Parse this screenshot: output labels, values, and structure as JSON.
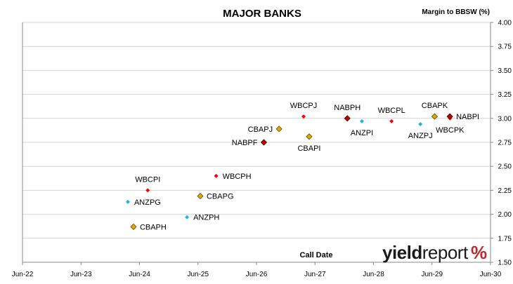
{
  "chart_data": {
    "type": "scatter",
    "title": "MAJOR BANKS",
    "ylabel": "Margin to BBSW (%)",
    "xlabel": "Call Date",
    "x_ticks": [
      "Jun-22",
      "Jun-23",
      "Jun-24",
      "Jun-25",
      "Jun-26",
      "Jun-27",
      "Jun-28",
      "Jun-29",
      "Jun-30"
    ],
    "ylim": [
      1.5,
      4.0
    ],
    "y_ticks": [
      "1.50",
      "1.75",
      "2.00",
      "2.25",
      "2.50",
      "2.75",
      "3.00",
      "3.25",
      "3.50",
      "3.75",
      "4.00"
    ],
    "grid": "horizontal",
    "colors": {
      "WBC": "#ff0000",
      "NAB": "#c00000",
      "ANZ": "#1fb4e6",
      "CBA": "#e5a800"
    },
    "points": [
      {
        "label": "ANZPG",
        "date": "2024-03-20",
        "y": 2.13,
        "bank": "ANZ",
        "shape": "diamond",
        "label_pos": "right"
      },
      {
        "label": "WBCPI",
        "date": "2024-07-22",
        "y": 2.25,
        "bank": "WBC",
        "shape": "diamond",
        "label_pos": "above"
      },
      {
        "label": "CBAPH",
        "date": "2024-04-24",
        "y": 1.87,
        "bank": "CBA",
        "shape": "diamond",
        "label_pos": "right"
      },
      {
        "label": "CBAPG",
        "date": "2025-06-15",
        "y": 2.19,
        "bank": "CBA",
        "shape": "diamond",
        "label_pos": "right"
      },
      {
        "label": "ANZPH",
        "date": "2025-03-24",
        "y": 1.97,
        "bank": "ANZ",
        "shape": "diamond",
        "label_pos": "right"
      },
      {
        "label": "WBCPH",
        "date": "2025-09-22",
        "y": 2.4,
        "bank": "WBC",
        "shape": "diamond",
        "label_pos": "right"
      },
      {
        "label": "NABPF",
        "date": "2026-07-17",
        "y": 2.75,
        "bank": "NAB",
        "shape": "diamond",
        "label_pos": "left"
      },
      {
        "label": "CBAPJ",
        "date": "2026-10-20",
        "y": 2.89,
        "bank": "CBA",
        "shape": "diamond",
        "label_pos": "left"
      },
      {
        "label": "WBCPJ",
        "date": "2027-03-22",
        "y": 3.02,
        "bank": "WBC",
        "shape": "diamond",
        "label_pos": "above"
      },
      {
        "label": "CBAPI",
        "date": "2027-04-26",
        "y": 2.81,
        "bank": "CBA",
        "shape": "diamond",
        "label_pos": "below"
      },
      {
        "label": "NABPH",
        "date": "2027-12-20",
        "y": 3.0,
        "bank": "NAB",
        "shape": "diamond",
        "label_pos": "above"
      },
      {
        "label": "ANZPI",
        "date": "2028-03-20",
        "y": 2.97,
        "bank": "ANZ",
        "shape": "diamond",
        "label_pos": "below"
      },
      {
        "label": "WBCPL",
        "date": "2028-09-21",
        "y": 2.97,
        "bank": "WBC",
        "shape": "diamond",
        "label_pos": "above"
      },
      {
        "label": "ANZPJ",
        "date": "2029-03-20",
        "y": 2.94,
        "bank": "ANZ",
        "shape": "diamond",
        "label_pos": "below"
      },
      {
        "label": "CBAPK",
        "date": "2029-06-17",
        "y": 3.02,
        "bank": "CBA",
        "shape": "diamond",
        "label_pos": "above"
      },
      {
        "label": "WBCPK",
        "date": "2029-09-21",
        "y": 3.0,
        "bank": "WBC",
        "shape": "diamond",
        "label_pos": "below"
      },
      {
        "label": "NABPI",
        "date": "2029-09-20",
        "y": 3.02,
        "bank": "NAB",
        "shape": "diamond",
        "label_pos": "right"
      }
    ]
  },
  "logo": {
    "text_a": "yield",
    "text_b": "report",
    "text_c": "%"
  }
}
